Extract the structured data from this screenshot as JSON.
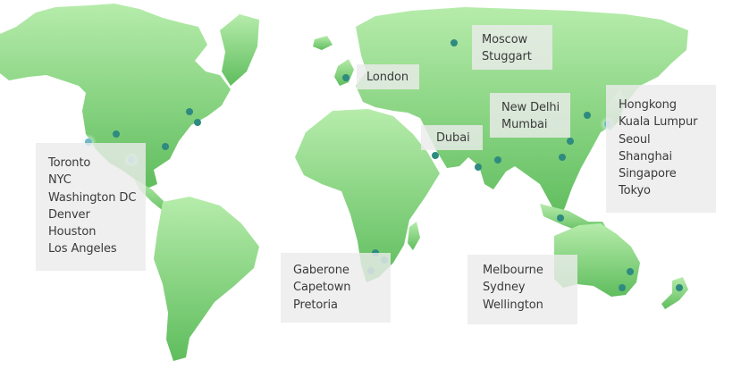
{
  "colors": {
    "land_light": "#b6ecab",
    "land_dark": "#5fbd5d",
    "marker": "#2f8a80",
    "marker_glow": "#bfe9e4",
    "label_bg": "#eaecea",
    "label_text": "#3a3a3a"
  },
  "regions": {
    "north_america": {
      "cities": [
        "Toronto",
        "NYC",
        "Washington DC",
        "Denver",
        "Houston",
        "Los Angeles"
      ]
    },
    "southern_africa": {
      "cities": [
        "Gaberone",
        "Capetown",
        "Pretoria"
      ]
    },
    "uk": {
      "cities": [
        "London"
      ]
    },
    "europe_russia": {
      "cities": [
        "Moscow",
        "Stuggart"
      ]
    },
    "india": {
      "cities": [
        "New Delhi",
        "Mumbai"
      ]
    },
    "middle_east": {
      "cities": [
        "Dubai"
      ]
    },
    "east_asia": {
      "cities": [
        "Hongkong",
        "Kuala Lumpur",
        "Seoul",
        "Shanghai",
        "Singapore",
        "Tokyo"
      ]
    },
    "oceania": {
      "cities": [
        "Melbourne",
        "Sydney",
        "Wellington"
      ]
    }
  }
}
